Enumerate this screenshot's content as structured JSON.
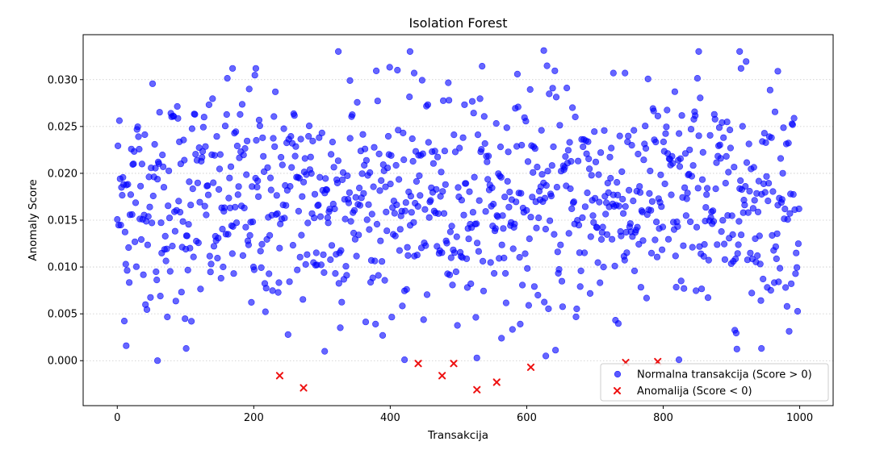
{
  "chart_data": {
    "type": "scatter",
    "title": "Isolation Forest",
    "xlabel": "Transakcija",
    "ylabel": "Anomaly Score",
    "xlim": [
      -50,
      1049
    ],
    "ylim": [
      -0.0048,
      0.0348
    ],
    "xticks": [
      0,
      200,
      400,
      600,
      800,
      1000
    ],
    "yticks": [
      0.0,
      0.005,
      0.01,
      0.015,
      0.02,
      0.025,
      0.03
    ],
    "xtick_labels": [
      "0",
      "200",
      "400",
      "600",
      "800",
      "1000"
    ],
    "ytick_labels": [
      "0.000",
      "0.005",
      "0.010",
      "0.015",
      "0.020",
      "0.025",
      "0.030"
    ],
    "grid": "horizontal dotted",
    "legend_position": "lower-right",
    "series": [
      {
        "name": "Normalna transakcija (Score > 0)",
        "marker": "circle",
        "color": "#0000ff",
        "x_range": [
          0,
          999
        ],
        "n_points": 990,
        "y_distribution": {
          "center": 0.017,
          "spread": 0.0062,
          "min": 0.0,
          "max": 0.033
        },
        "notable_points": [
          [
            169,
            0.0312
          ],
          [
            203,
            0.0312
          ],
          [
            324,
            0.033
          ],
          [
            341,
            0.0299
          ],
          [
            429,
            0.033
          ],
          [
            435,
            0.0307
          ],
          [
            625,
            0.0331
          ],
          [
            852,
            0.033
          ],
          [
            912,
            0.033
          ],
          [
            914,
            0.0312
          ],
          [
            968,
            0.0309
          ],
          [
            727,
            0.0307
          ],
          [
            744,
            0.0307
          ],
          [
            59,
            0.0
          ],
          [
            421,
            0.0001
          ],
          [
            527,
            0.0003
          ],
          [
            628,
            0.0005
          ],
          [
            823,
            0.0001
          ],
          [
            13,
            0.0016
          ],
          [
            101,
            0.0013
          ],
          [
            304,
            0.001
          ],
          [
            563,
            0.0024
          ],
          [
            944,
            0.0013
          ]
        ]
      },
      {
        "name": "Anomalija (Score < 0)",
        "marker": "x",
        "color": "#ff0000",
        "points": [
          [
            238,
            -0.0016
          ],
          [
            273,
            -0.0029
          ],
          [
            441,
            -0.0003
          ],
          [
            476,
            -0.0016
          ],
          [
            493,
            -0.0003
          ],
          [
            527,
            -0.0031
          ],
          [
            556,
            -0.0023
          ],
          [
            606,
            -0.0007
          ],
          [
            745,
            -0.0002
          ],
          [
            792,
            -0.0001
          ]
        ]
      }
    ]
  }
}
